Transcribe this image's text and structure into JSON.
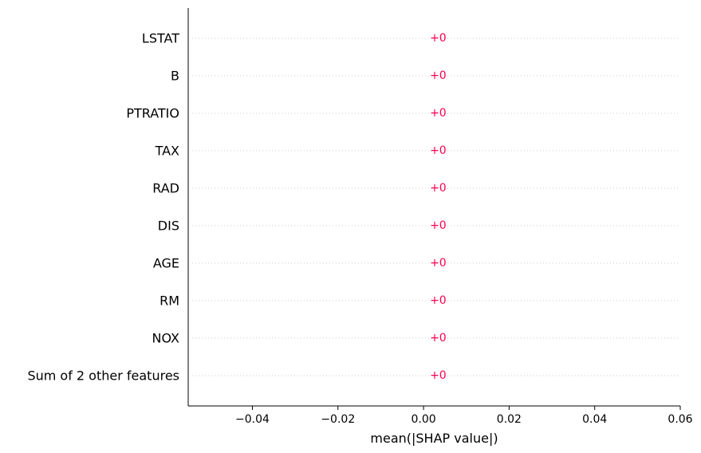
{
  "chart_data": {
    "type": "bar",
    "orientation": "horizontal",
    "categories": [
      "LSTAT",
      "B",
      "PTRATIO",
      "TAX",
      "RAD",
      "DIS",
      "AGE",
      "RM",
      "NOX",
      "Sum of 2 other features"
    ],
    "values": [
      0,
      0,
      0,
      0,
      0,
      0,
      0,
      0,
      0,
      0
    ],
    "value_labels": [
      "+0",
      "+0",
      "+0",
      "+0",
      "+0",
      "+0",
      "+0",
      "+0",
      "+0",
      "+0"
    ],
    "xlabel": "mean(|SHAP value|)",
    "ylabel": "",
    "xlim": [
      -0.055,
      0.06
    ],
    "xticks": [
      -0.04,
      -0.02,
      0.0,
      0.02,
      0.04,
      0.06
    ],
    "xtick_labels": [
      "−0.04",
      "−0.02",
      "0.00",
      "0.02",
      "0.04",
      "0.06"
    ],
    "grid": "dotted row lines",
    "colors": {
      "bar": "#ff0051",
      "value_label": "#ff0051",
      "grid": "#cccccc",
      "axis": "#000000"
    }
  }
}
